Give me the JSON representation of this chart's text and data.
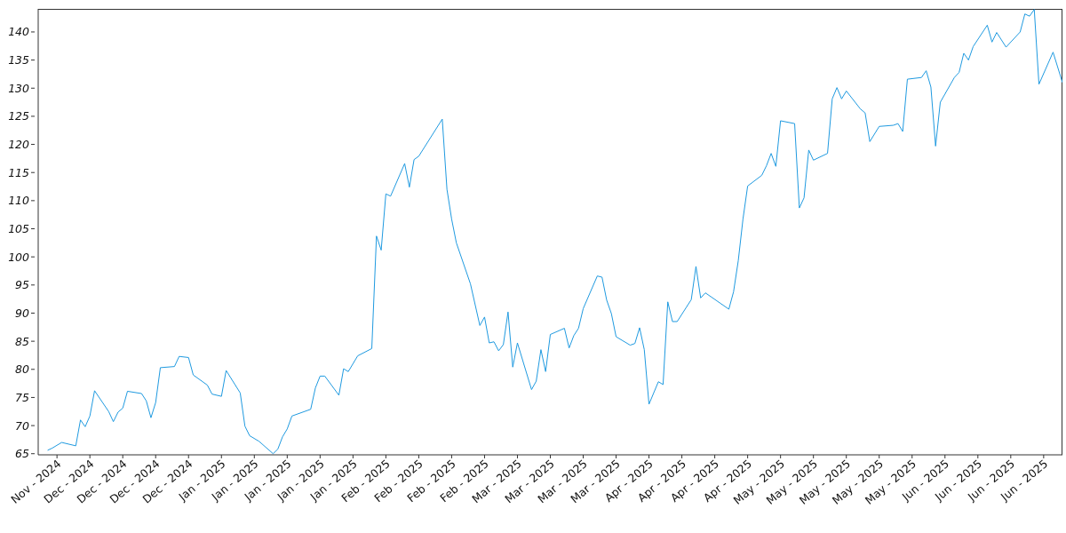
{
  "chart_data": {
    "type": "line",
    "color": "#1f9ae0",
    "marker": "none",
    "line_style": "solid",
    "xlim": [
      "2024-11-24",
      "2025-06-30"
    ],
    "ylim": [
      64.8,
      144.1
    ],
    "yticks": [
      65,
      70,
      75,
      80,
      85,
      90,
      95,
      100,
      105,
      110,
      115,
      120,
      125,
      130,
      135,
      140
    ],
    "xticks": [
      {
        "value": "2024-11-28",
        "label": "Nov - 2024"
      },
      {
        "value": "2024-12-05",
        "label": "Dec - 2024"
      },
      {
        "value": "2024-12-12",
        "label": "Dec - 2024"
      },
      {
        "value": "2024-12-19",
        "label": "Dec - 2024"
      },
      {
        "value": "2024-12-26",
        "label": "Dec - 2024"
      },
      {
        "value": "2025-01-02",
        "label": "Jan - 2025"
      },
      {
        "value": "2025-01-09",
        "label": "Jan - 2025"
      },
      {
        "value": "2025-01-16",
        "label": "Jan - 2025"
      },
      {
        "value": "2025-01-23",
        "label": "Jan - 2025"
      },
      {
        "value": "2025-01-30",
        "label": "Jan - 2025"
      },
      {
        "value": "2025-02-06",
        "label": "Feb - 2025"
      },
      {
        "value": "2025-02-13",
        "label": "Feb - 2025"
      },
      {
        "value": "2025-02-20",
        "label": "Feb - 2025"
      },
      {
        "value": "2025-02-27",
        "label": "Feb - 2025"
      },
      {
        "value": "2025-03-06",
        "label": "Mar - 2025"
      },
      {
        "value": "2025-03-13",
        "label": "Mar - 2025"
      },
      {
        "value": "2025-03-20",
        "label": "Mar - 2025"
      },
      {
        "value": "2025-03-27",
        "label": "Mar - 2025"
      },
      {
        "value": "2025-04-03",
        "label": "Apr - 2025"
      },
      {
        "value": "2025-04-10",
        "label": "Apr - 2025"
      },
      {
        "value": "2025-04-17",
        "label": "Apr - 2025"
      },
      {
        "value": "2025-04-24",
        "label": "Apr - 2025"
      },
      {
        "value": "2025-05-01",
        "label": "May - 2025"
      },
      {
        "value": "2025-05-08",
        "label": "May - 2025"
      },
      {
        "value": "2025-05-15",
        "label": "May - 2025"
      },
      {
        "value": "2025-05-22",
        "label": "May - 2025"
      },
      {
        "value": "2025-05-29",
        "label": "May - 2025"
      },
      {
        "value": "2025-06-05",
        "label": "Jun - 2025"
      },
      {
        "value": "2025-06-12",
        "label": "Jun - 2025"
      },
      {
        "value": "2025-06-19",
        "label": "Jun - 2025"
      },
      {
        "value": "2025-06-26",
        "label": "Jun - 2025"
      }
    ],
    "x": [
      "2024-11-26",
      "2024-11-27",
      "2024-11-29",
      "2024-12-02",
      "2024-12-03",
      "2024-12-04",
      "2024-12-05",
      "2024-12-06",
      "2024-12-09",
      "2024-12-10",
      "2024-12-11",
      "2024-12-12",
      "2024-12-13",
      "2024-12-16",
      "2024-12-17",
      "2024-12-18",
      "2024-12-19",
      "2024-12-20",
      "2024-12-23",
      "2024-12-24",
      "2024-12-26",
      "2024-12-27",
      "2024-12-30",
      "2024-12-31",
      "2025-01-02",
      "2025-01-03",
      "2025-01-06",
      "2025-01-07",
      "2025-01-08",
      "2025-01-10",
      "2025-01-13",
      "2025-01-14",
      "2025-01-15",
      "2025-01-16",
      "2025-01-17",
      "2025-01-21",
      "2025-01-22",
      "2025-01-23",
      "2025-01-24",
      "2025-01-27",
      "2025-01-28",
      "2025-01-29",
      "2025-01-31",
      "2025-02-03",
      "2025-02-04",
      "2025-02-05",
      "2025-02-06",
      "2025-02-07",
      "2025-02-10",
      "2025-02-11",
      "2025-02-12",
      "2025-02-13",
      "2025-02-18",
      "2025-02-19",
      "2025-02-20",
      "2025-02-21",
      "2025-02-24",
      "2025-02-26",
      "2025-02-27",
      "2025-02-28",
      "2025-03-01",
      "2025-03-02",
      "2025-03-03",
      "2025-03-04",
      "2025-03-05",
      "2025-03-06",
      "2025-03-09",
      "2025-03-10",
      "2025-03-11",
      "2025-03-12",
      "2025-03-13",
      "2025-03-16",
      "2025-03-17",
      "2025-03-18",
      "2025-03-19",
      "2025-03-20",
      "2025-03-23",
      "2025-03-24",
      "2025-03-25",
      "2025-03-26",
      "2025-03-27",
      "2025-03-30",
      "2025-03-31",
      "2025-04-01",
      "2025-04-02",
      "2025-04-03",
      "2025-04-05",
      "2025-04-06",
      "2025-04-07",
      "2025-04-08",
      "2025-04-09",
      "2025-04-12",
      "2025-04-13",
      "2025-04-14",
      "2025-04-15",
      "2025-04-20",
      "2025-04-21",
      "2025-04-22",
      "2025-04-23",
      "2025-04-24",
      "2025-04-27",
      "2025-04-28",
      "2025-04-29",
      "2025-04-30",
      "2025-05-01",
      "2025-05-04",
      "2025-05-05",
      "2025-05-06",
      "2025-05-07",
      "2025-05-08",
      "2025-05-11",
      "2025-05-12",
      "2025-05-13",
      "2025-05-14",
      "2025-05-15",
      "2025-05-18",
      "2025-05-19",
      "2025-05-20",
      "2025-05-22",
      "2025-05-25",
      "2025-05-26",
      "2025-05-27",
      "2025-05-28",
      "2025-05-31",
      "2025-06-01",
      "2025-06-02",
      "2025-06-03",
      "2025-06-04",
      "2025-06-07",
      "2025-06-08",
      "2025-06-09",
      "2025-06-10",
      "2025-06-11",
      "2025-06-14",
      "2025-06-15",
      "2025-06-16",
      "2025-06-18",
      "2025-06-21",
      "2025-06-22",
      "2025-06-23",
      "2025-06-24",
      "2025-06-25",
      "2025-06-28",
      "2025-06-30"
    ],
    "values": [
      65.6,
      66.0,
      67.0,
      66.4,
      71.0,
      69.8,
      71.7,
      76.2,
      72.5,
      70.7,
      72.4,
      73.1,
      76.1,
      75.7,
      74.4,
      71.4,
      74.1,
      80.3,
      80.5,
      82.3,
      82.1,
      79.0,
      77.2,
      75.6,
      75.2,
      79.8,
      75.8,
      69.9,
      68.2,
      67.2,
      65.0,
      65.8,
      68.0,
      69.4,
      71.7,
      72.9,
      76.7,
      78.8,
      78.8,
      75.4,
      80.1,
      79.6,
      82.4,
      83.7,
      103.7,
      101.2,
      111.2,
      110.8,
      116.6,
      112.4,
      117.3,
      117.9,
      124.5,
      112.0,
      106.7,
      102.5,
      95.2,
      87.8,
      89.3,
      84.7,
      84.9,
      83.3,
      84.4,
      90.2,
      80.4,
      84.7,
      76.4,
      77.9,
      83.5,
      79.6,
      86.2,
      87.3,
      83.8,
      86.0,
      87.3,
      90.8,
      96.6,
      96.4,
      92.3,
      89.9,
      85.8,
      84.3,
      84.6,
      87.4,
      83.5,
      73.8,
      77.8,
      77.3,
      92.0,
      88.5,
      88.5,
      92.4,
      98.3,
      92.7,
      93.6,
      90.7,
      93.8,
      99.3,
      106.7,
      112.6,
      114.5,
      116.2,
      118.4,
      116.1,
      124.2,
      123.7,
      108.7,
      110.5,
      119.0,
      117.2,
      118.4,
      128.1,
      130.1,
      128.1,
      129.5,
      126.3,
      125.6,
      120.5,
      123.2,
      123.4,
      123.7,
      122.3,
      131.6,
      131.9,
      133.1,
      130.2,
      119.7,
      127.5,
      131.9,
      132.8,
      136.2,
      135.0,
      137.4,
      141.2,
      138.2,
      139.9,
      137.3,
      140.0,
      143.2,
      142.8,
      144.0,
      130.7,
      136.4,
      131.0
    ]
  }
}
